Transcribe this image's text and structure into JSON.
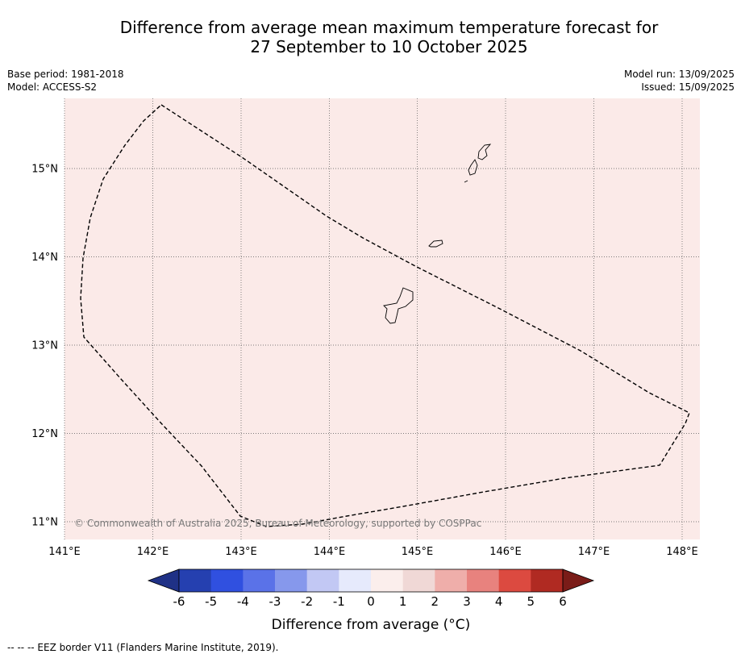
{
  "title_line1": "Difference from average mean maximum temperature forecast for",
  "title_line2": "27 September to 10 October 2025",
  "left_info": {
    "base_period": "Base period: 1981-2018",
    "model": "Model: ACCESS-S2"
  },
  "right_info": {
    "model_run": "Model run: 13/09/2025",
    "issued": "Issued: 15/09/2025"
  },
  "map": {
    "lon_ticks": [
      "141°E",
      "142°E",
      "143°E",
      "144°E",
      "145°E",
      "146°E",
      "147°E",
      "148°E"
    ],
    "lat_ticks": [
      "15°N",
      "14°N",
      "13°N",
      "12°N",
      "11°N"
    ],
    "fill_color": "#fbeae8",
    "copyright": "© Commonwealth of Australia 2025, Bureau of Meteorology, supported by COSPPac"
  },
  "colorbar": {
    "ticks": [
      "-6",
      "-5",
      "-4",
      "-3",
      "-2",
      "-1",
      "0",
      "1",
      "2",
      "3",
      "4",
      "5",
      "6"
    ],
    "colors": [
      "#2540b0",
      "#3050e0",
      "#5a72e8",
      "#8698ec",
      "#c2c8f4",
      "#e6eafc",
      "#fbeeec",
      "#f0d8d6",
      "#efaeaa",
      "#e8827e",
      "#dc4a40",
      "#b02a22"
    ],
    "under_color": "#1f3186",
    "over_color": "#7a1c18",
    "title": "Difference from average (°C)"
  },
  "footer": "-- -- -- EEZ border V11 (Flanders Marine Institute, 2019)."
}
